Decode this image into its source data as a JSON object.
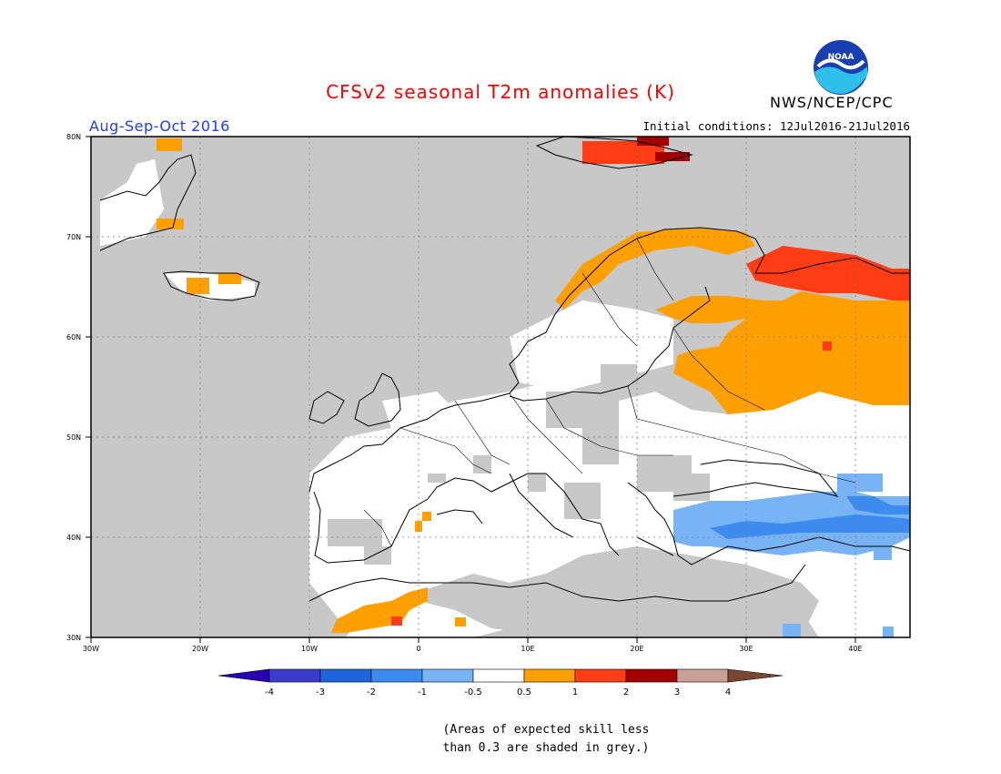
{
  "header": {
    "title": "CFSv2 seasonal T2m anomalies (K)",
    "agency": "NWS/NCEP/CPC",
    "season": "Aug-Sep-Oct 2016",
    "initial_conditions": "Initial conditions: 12Jul2016-21Jul2016",
    "logo_text": "NOAA"
  },
  "map": {
    "region": "Europe",
    "lon_range": [
      -30,
      45
    ],
    "lat_range": [
      30,
      80
    ],
    "lat_ticks": [
      "30N",
      "40N",
      "50N",
      "60N",
      "70N",
      "80N"
    ],
    "lon_ticks": [
      "30W",
      "20W",
      "10W",
      "0",
      "10E",
      "20E",
      "30E",
      "40E"
    ],
    "background_color": "#c8c8c8"
  },
  "colorbar": {
    "labels": [
      "-4",
      "-3",
      "-2",
      "-1",
      "-0.5",
      "0.5",
      "1",
      "2",
      "3",
      "4"
    ],
    "colors": [
      "#2a00b0",
      "#3c3ccc",
      "#1e64dc",
      "#3c8cf0",
      "#78b4f5",
      "#ffffff",
      "#ffa000",
      "#ff3c14",
      "#a50000",
      "#c8a096",
      "#784632"
    ]
  },
  "footnote": {
    "line1": "(Areas of expected skill less",
    "line2": "than 0.3 are shaded in grey.)"
  }
}
